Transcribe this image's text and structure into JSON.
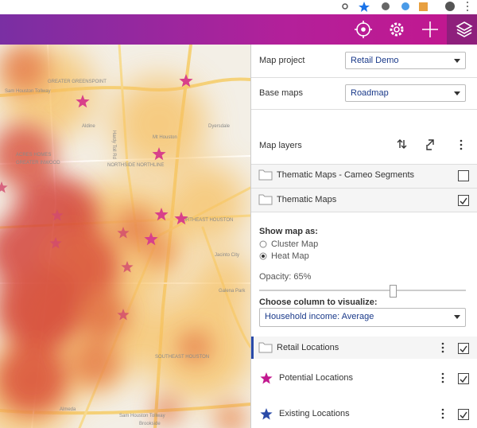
{
  "map": {
    "labels": [
      "GREATER GREENSPOINT",
      "Sam Houston Tollway",
      "Aldine",
      "Dyersdale",
      "Mt Houston",
      "Hardy Toll Rd",
      "ACRES HOMES",
      "GREATER INWOOD",
      "NORTHSIDE NORTHLINE",
      "NORTHEAST HOUSTON",
      "Jacinto City",
      "Galena Park",
      "SOUTHEAST HOUSTON",
      "Almeda",
      "Sam Houston Tollway",
      "Brookside"
    ]
  },
  "panel": {
    "map_project": {
      "label": "Map project",
      "value": "Retail Demo"
    },
    "base_maps": {
      "label": "Base maps",
      "value": "Roadmap"
    },
    "map_layers": {
      "title": "Map layers",
      "layers": [
        {
          "name": "Thematic Maps - Cameo Segments",
          "checked": false
        },
        {
          "name": "Thematic Maps",
          "checked": true
        }
      ]
    },
    "options": {
      "show_map_as": "Show map as:",
      "choices": [
        {
          "label": "Cluster Map",
          "selected": false
        },
        {
          "label": "Heat Map",
          "selected": true
        }
      ],
      "opacity": "Opacity: 65%",
      "column_label": "Choose column to visualize:",
      "column_value": "Household income: Average"
    },
    "sublayers": [
      {
        "name": "Retail Locations",
        "checked": true
      },
      {
        "name": "Potential Locations",
        "checked": true
      },
      {
        "name": "Existing Locations",
        "checked": true
      }
    ]
  }
}
